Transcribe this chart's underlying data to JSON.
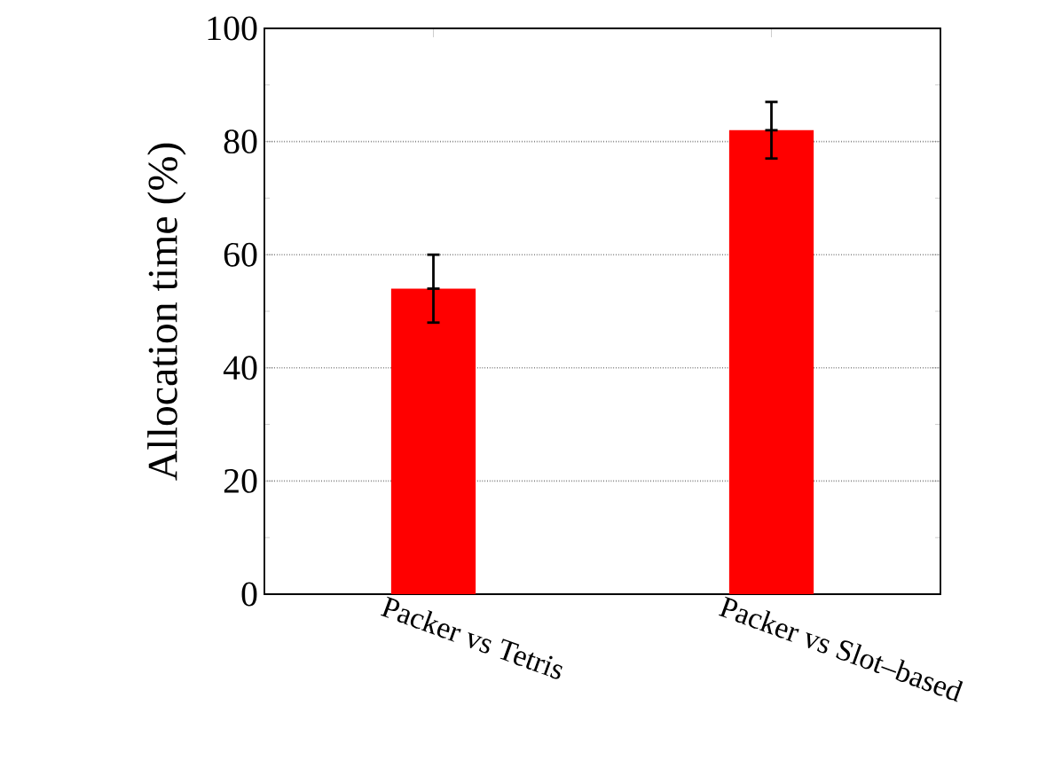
{
  "chart_data": {
    "type": "bar",
    "ylabel": "Allocation time (%)",
    "categories": [
      "Packer vs Tetris",
      "Packer vs Slot–based"
    ],
    "values": [
      54,
      82
    ],
    "color": "#ff0000",
    "errors": [
      [
        48,
        60
      ],
      [
        77,
        87
      ]
    ],
    "ylim": [
      0,
      100
    ],
    "yticks": [
      0,
      20,
      40,
      60,
      80,
      100
    ],
    "grid": "y"
  }
}
